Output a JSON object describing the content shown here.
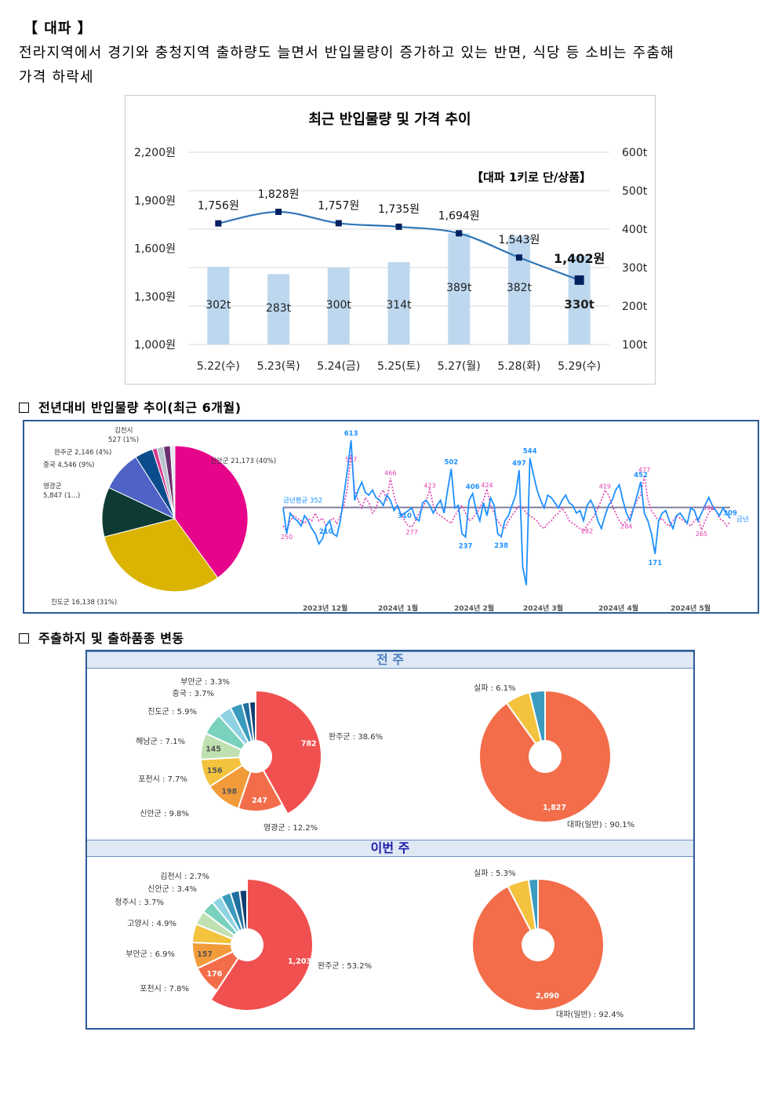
{
  "header": {
    "label": "【 대파 】",
    "line1": "전라지역에서 경기와 충청지역 출하량도 늘면서 반입물량이 증가하고 있는 반면, 식당 등 소비는 주춤해",
    "line2": "가격 하락세"
  },
  "price_chart": {
    "title": "최근 반입물량 및 가격 추이",
    "note": "【대파 1키로 단/상품】",
    "left_ticks": [
      "2,200원",
      "1,900원",
      "1,600원",
      "1,300원",
      "1,000원"
    ],
    "right_ticks": [
      "600t",
      "500t",
      "400t",
      "300t",
      "200t",
      "100t"
    ]
  },
  "section2": {
    "title": "전년대비 반입물량 추이(최근 6개월)"
  },
  "section3": {
    "title": "주출하지 및 출하품종 변동"
  },
  "prev_week": {
    "band": "전 주"
  },
  "this_week": {
    "band": "이번 주"
  },
  "colors": {
    "bar": "#bdd7ee",
    "line": "#2e75b6",
    "marker": "#002060",
    "frame": "#2e5a96",
    "band_bg": "#dfe9f5"
  },
  "chart_data": [
    {
      "id": "price_volume",
      "type": "bar",
      "title": "최근 반입물량 및 가격 추이",
      "categories": [
        "5.22(수)",
        "5.23(목)",
        "5.24(금)",
        "5.25(토)",
        "5.27(월)",
        "5.28(화)",
        "5.29(수)"
      ],
      "series": [
        {
          "values": [
            302,
            283,
            300,
            314,
            389,
            382,
            330
          ],
          "labels": [
            "302t",
            "283t",
            "300t",
            "314t",
            "389t",
            "382t",
            "330t"
          ]
        },
        {
          "type": "line",
          "values": [
            1756,
            1828,
            1757,
            1735,
            1694,
            1543,
            1402
          ],
          "labels": [
            "1,756원",
            "1,828원",
            "1,757원",
            "1,735원",
            "1,694원",
            "1,543원",
            "1,402원"
          ]
        }
      ],
      "ylim_left": [
        1000,
        2200
      ],
      "ylim_right": [
        100,
        600
      ],
      "grid": true
    },
    {
      "id": "origin_6months",
      "type": "pie",
      "slices": [
        {
          "label": "신안군 21,173 (40%)",
          "value": 40,
          "color": "#e6058a"
        },
        {
          "label": "진도군 16,138 (31%)",
          "value": 31,
          "color": "#dab400"
        },
        {
          "label": "영광군 5,847 (1...)",
          "value": 11,
          "color": "#0d3b33"
        },
        {
          "label": "중국 4,546 (9%)",
          "value": 9,
          "color": "#4f63c6"
        },
        {
          "label": "완주군 2,146 (4%)",
          "value": 4,
          "color": "#0b4d8c"
        },
        {
          "label": "김천시 527 (1%)",
          "value": 1,
          "color": "#db3a8e"
        },
        {
          "label": "",
          "value": 1.5,
          "color": "#b9c3ce"
        },
        {
          "label": "",
          "value": 1.5,
          "color": "#6b2f6f"
        },
        {
          "label": "",
          "value": 1,
          "color": "#e7e7ee"
        }
      ]
    },
    {
      "id": "yoy_trend",
      "type": "line",
      "x_ticks": [
        "2023년 12월",
        "2024년 1월",
        "2024년 2월",
        "2024년 3월",
        "2024년 4월",
        "2024년 5월"
      ],
      "series": [
        {
          "name": "금년",
          "color": "#1e90ff",
          "values": [
            352,
            250,
            330,
            310,
            300,
            280,
            320,
            300,
            270,
            250,
            210,
            230,
            280,
            300,
            250,
            240,
            300,
            400,
            500,
            613,
            380,
            420,
            450,
            410,
            400,
            420,
            390,
            380,
            360,
            400,
            380,
            340,
            360,
            320,
            330,
            340,
            350,
            310,
            300,
            370,
            380,
            360,
            330,
            360,
            380,
            330,
            420,
            502,
            350,
            360,
            250,
            237,
            380,
            406,
            340,
            300,
            370,
            320,
            390,
            360,
            250,
            238,
            300,
            320,
            360,
            400,
            497,
            120,
            50,
            544,
            480,
            420,
            380,
            350,
            400,
            390,
            370,
            350,
            380,
            400,
            370,
            360,
            330,
            340,
            300,
            360,
            380,
            350,
            300,
            270,
            320,
            360,
            380,
            420,
            440,
            380,
            330,
            300,
            350,
            400,
            452,
            330,
            300,
            250,
            171,
            300,
            330,
            340,
            300,
            270,
            320,
            330,
            310,
            290,
            350,
            340,
            300,
            330,
            360,
            391,
            360,
            340,
            320,
            350,
            330,
            309
          ]
        },
        {
          "name": "",
          "color": "#e040b0",
          "values": [
            280,
            260,
            300,
            320,
            310,
            300,
            290,
            310,
            300,
            330,
            300,
            310,
            280,
            300,
            310,
            290,
            320,
            360,
            430,
            560,
            420,
            380,
            350,
            390,
            370,
            330,
            350,
            400,
            420,
            380,
            466,
            400,
            350,
            330,
            300,
            280,
            277,
            300,
            330,
            350,
            380,
            423,
            360,
            330,
            320,
            310,
            300,
            290,
            320,
            340,
            360,
            330,
            300,
            310,
            330,
            350,
            380,
            424,
            360,
            330,
            300,
            280,
            270,
            300,
            320,
            340,
            360,
            350,
            330,
            320,
            310,
            300,
            280,
            270,
            290,
            300,
            320,
            330,
            350,
            330,
            300,
            290,
            280,
            270,
            260,
            282,
            300,
            320,
            350,
            380,
            419,
            400,
            360,
            330,
            300,
            284,
            300,
            320,
            350,
            380,
            400,
            477,
            380,
            340,
            320,
            300,
            310,
            290,
            280,
            300,
            320,
            310,
            300,
            290,
            280,
            300,
            310,
            265,
            300,
            330,
            350,
            340,
            310,
            300,
            280,
            298
          ]
        },
        {
          "name": "금년평균 352",
          "color": "#7f7f9f",
          "values": [
            352
          ]
        }
      ]
    },
    {
      "id": "prev_week_origin",
      "type": "pie",
      "slices": [
        {
          "label": "완주군 : 38.6%",
          "value": 782,
          "color": "#f0504f"
        },
        {
          "label": "영광군 : 12.2%",
          "value": 247,
          "color": "#f36d4a"
        },
        {
          "label": "신안군 : 9.8%",
          "value": 198,
          "color": "#f29b3a"
        },
        {
          "label": "포천시 : 7.7%",
          "value": 156,
          "color": "#f3c33d"
        },
        {
          "label": "해남군 : 7.1%",
          "value": 145,
          "color": "#bfe0b0"
        },
        {
          "label": "진도군 : 5.9%",
          "value": 120,
          "color": "#79d1be"
        },
        {
          "label": "중국 : 3.7%",
          "value": 75,
          "color": "#8fd3e3"
        },
        {
          "label": "부안군 : 3.3%",
          "value": 67,
          "color": "#3a9bbe"
        },
        {
          "label": "",
          "value": 40,
          "color": "#1e6f9f"
        },
        {
          "label": "",
          "value": 35,
          "color": "#123f73"
        }
      ],
      "value_labels": [
        "782",
        "247",
        "198",
        "156",
        "145"
      ]
    },
    {
      "id": "prev_week_variety",
      "type": "pie",
      "slices": [
        {
          "label": "대파(일반) : 90.1%",
          "value": 1827,
          "color": "#f36d4a"
        },
        {
          "label": "실파 : 6.1%",
          "value": 124,
          "color": "#f3c33d"
        },
        {
          "label": "",
          "value": 77,
          "color": "#3a9bbe"
        }
      ],
      "value_labels": [
        "1,827"
      ]
    },
    {
      "id": "this_week_origin",
      "type": "pie",
      "slices": [
        {
          "label": "완주군 : 53.2%",
          "value": 1203,
          "color": "#f0504f"
        },
        {
          "label": "포천시 : 7.8%",
          "value": 176,
          "color": "#f36d4a"
        },
        {
          "label": "부안군 : 6.9%",
          "value": 157,
          "color": "#f29b3a"
        },
        {
          "label": "고양시 : 4.9%",
          "value": 111,
          "color": "#f3c33d"
        },
        {
          "label": "청주시 : 3.7%",
          "value": 84,
          "color": "#bfe0b0"
        },
        {
          "label": "신안군 : 3.4%",
          "value": 77,
          "color": "#79d1be"
        },
        {
          "label": "김천시 : 2.7%",
          "value": 61,
          "color": "#8fd3e3"
        },
        {
          "label": "",
          "value": 60,
          "color": "#3a9bbe"
        },
        {
          "label": "",
          "value": 55,
          "color": "#1e6f9f"
        },
        {
          "label": "",
          "value": 45,
          "color": "#123f73"
        }
      ],
      "value_labels": [
        "1,203",
        "176",
        "157"
      ]
    },
    {
      "id": "this_week_variety",
      "type": "pie",
      "slices": [
        {
          "label": "대파(일반) : 92.4%",
          "value": 2090,
          "color": "#f36d4a"
        },
        {
          "label": "실파 : 5.3%",
          "value": 120,
          "color": "#f3c33d"
        },
        {
          "label": "",
          "value": 52,
          "color": "#3a9bbe"
        }
      ],
      "value_labels": [
        "2,090"
      ]
    }
  ]
}
